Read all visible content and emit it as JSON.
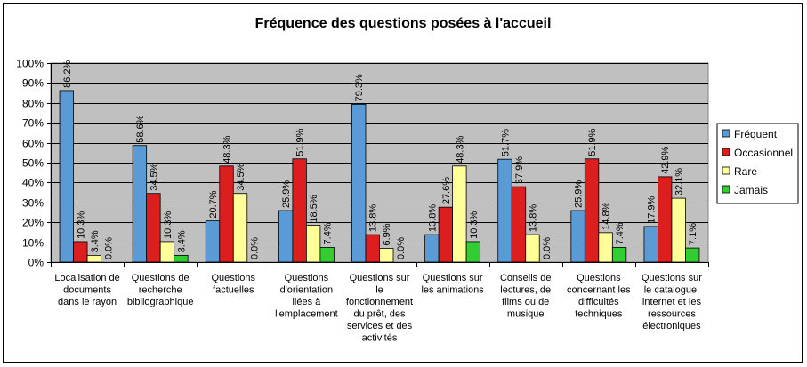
{
  "chart_data": {
    "type": "bar",
    "title": "Fréquence des questions posées à l'accueil",
    "xlabel": "",
    "ylabel": "",
    "ylim": [
      0,
      100
    ],
    "yticks": [
      "0%",
      "10%",
      "20%",
      "30%",
      "40%",
      "50%",
      "60%",
      "70%",
      "80%",
      "90%",
      "100%"
    ],
    "grid": true,
    "legend_position": "right",
    "plot_background": "#c0c0c0",
    "categories": [
      [
        "Localisation de",
        "documents",
        "dans le rayon"
      ],
      [
        "Questions de",
        "recherche",
        "bibliographique"
      ],
      [
        "Questions",
        "factuelles"
      ],
      [
        "Questions",
        "d'orientation",
        "liées à",
        "l'emplacement"
      ],
      [
        "Questions sur",
        "le",
        "fonctionnement",
        "du prêt, des",
        "services et des",
        "activités"
      ],
      [
        "Questions sur",
        "les animations"
      ],
      [
        "Conseils de",
        "lectures, de",
        "films ou de",
        "musique"
      ],
      [
        "Questions",
        "concernant les",
        "difficultés",
        "techniques"
      ],
      [
        "Questions sur",
        "le catalogue,",
        "internet et les",
        "ressources",
        "électroniques"
      ]
    ],
    "series": [
      {
        "name": "Fréquent",
        "color": "#5b9bd5",
        "values": [
          86.2,
          58.6,
          20.7,
          25.9,
          79.3,
          13.8,
          51.7,
          25.9,
          17.9
        ],
        "labels": [
          "86.2%",
          "58.6%",
          "20.7%",
          "25.9%",
          "79.3%",
          "13.8%",
          "51.7%",
          "25.9%",
          "17.9%"
        ]
      },
      {
        "name": "Occasionnel",
        "color": "#dc1e1e",
        "values": [
          10.3,
          34.5,
          48.3,
          51.9,
          13.8,
          27.6,
          37.9,
          51.9,
          42.9
        ],
        "labels": [
          "10.3%",
          "34.5%",
          "48.3%",
          "51.9%",
          "13.8%",
          "27.6%",
          "37.9%",
          "51.9%",
          "42.9%"
        ]
      },
      {
        "name": "Rare",
        "color": "#ffff99",
        "values": [
          3.4,
          10.3,
          34.5,
          18.5,
          6.9,
          48.3,
          13.8,
          14.8,
          32.1
        ],
        "labels": [
          "3.4%",
          "10.3%",
          "34.5%",
          "18.5%",
          "6.9%",
          "48.3%",
          "13.8%",
          "14.8%",
          "32.1%"
        ]
      },
      {
        "name": "Jamais",
        "color": "#33cc33",
        "values": [
          0.0,
          3.4,
          0.0,
          7.4,
          0.0,
          10.3,
          0.0,
          7.4,
          7.1
        ],
        "labels": [
          "0.0%",
          "3.4%",
          "0.0%",
          "7.4%",
          "0.0%",
          "10.3%",
          "0.0%",
          "7.4%",
          "7.1%"
        ]
      }
    ]
  }
}
